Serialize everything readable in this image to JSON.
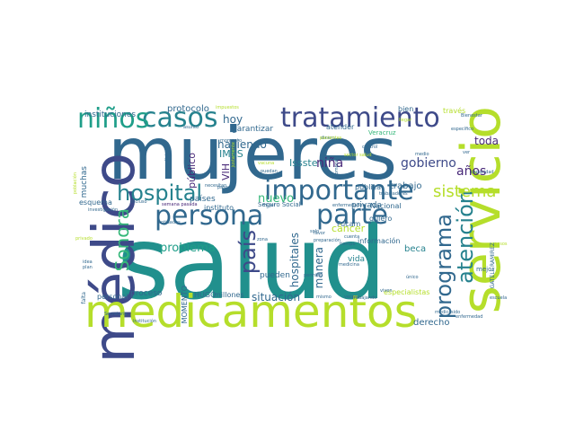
{
  "palette": {
    "dark_purple": "#440154",
    "indigo": "#3e4a89",
    "steel_blue": "#31688e",
    "blue": "#26828e",
    "teal": "#1f9e89",
    "green": "#35b779",
    "lime": "#6ece58",
    "yellow_green": "#b5de2b",
    "yellow": "#fde725"
  },
  "words": [
    {
      "text": "salud",
      "color": "#21908d"
    },
    {
      "text": "mujeres",
      "color": "#31688e"
    },
    {
      "text": "médico",
      "color": "#3e4a89"
    },
    {
      "text": "medicamentos",
      "color": "#b5de2b"
    },
    {
      "text": "servicio",
      "color": "#b5de2b"
    },
    {
      "text": "tratamiento",
      "color": "#3e4a89"
    },
    {
      "text": "importante",
      "color": "#31688e"
    },
    {
      "text": "persona",
      "color": "#31688e"
    },
    {
      "text": "parte",
      "color": "#31688e"
    },
    {
      "text": "casos",
      "color": "#26828e"
    },
    {
      "text": "niños",
      "color": "#1f9e89"
    },
    {
      "text": "hospital",
      "color": "#26828e"
    },
    {
      "text": "Sonora",
      "color": "#35b779"
    },
    {
      "text": "programa",
      "color": "#31688e"
    },
    {
      "text": "atención",
      "color": "#26828e"
    },
    {
      "text": "país",
      "color": "#3e4a89"
    },
    {
      "text": "sistema",
      "color": "#b5de2b"
    },
    {
      "text": "años",
      "color": "#482878"
    },
    {
      "text": "gobierno",
      "color": "#3e4a89"
    },
    {
      "text": "niña",
      "color": "#482878"
    },
    {
      "text": "toda",
      "color": "#482878"
    },
    {
      "text": "problema",
      "color": "#1f9e89"
    },
    {
      "text": "nuevo",
      "color": "#35b779"
    },
    {
      "text": "hoy",
      "color": "#31688e"
    },
    {
      "text": "haciendo",
      "color": "#31688e"
    },
    {
      "text": "manera",
      "color": "#31688e"
    },
    {
      "text": "hospitales",
      "color": "#31688e"
    },
    {
      "text": "situación",
      "color": "#31688e"
    },
    {
      "text": "IMSS",
      "color": "#26828e"
    },
    {
      "text": "Issste",
      "color": "#26828e"
    },
    {
      "text": "VIH",
      "color": "#482878"
    },
    {
      "text": "público",
      "color": "#482878"
    },
    {
      "text": "trabajo",
      "color": "#31688e"
    },
    {
      "text": "derecho",
      "color": "#31688e"
    },
    {
      "text": "beca",
      "color": "#26828e"
    },
    {
      "text": "cáncer",
      "color": "#b5de2b"
    },
    {
      "text": "vida",
      "color": "#26828e"
    },
    {
      "text": "privada",
      "color": "#31688e"
    },
    {
      "text": "pública",
      "color": "#31688e"
    },
    {
      "text": "protocolo",
      "color": "#31688e"
    },
    {
      "text": "instituciones",
      "color": "#31688e"
    },
    {
      "text": "muchas",
      "color": "#31688e"
    },
    {
      "text": "esquema",
      "color": "#31688e"
    },
    {
      "text": "garantizar",
      "color": "#31688e"
    },
    {
      "text": "pueden",
      "color": "#31688e"
    },
    {
      "text": "países",
      "color": "#31688e"
    },
    {
      "text": "instituto",
      "color": "#31688e"
    },
    {
      "text": "proceso",
      "color": "#31688e"
    },
    {
      "text": "personal",
      "color": "#31688e"
    },
    {
      "text": "millones",
      "color": "#31688e"
    },
    {
      "text": "HUGO",
      "color": "#31688e"
    },
    {
      "text": "MOMENTO",
      "color": "#31688e"
    },
    {
      "text": "especialistas",
      "color": "#b5de2b"
    },
    {
      "text": "información",
      "color": "#31688e"
    },
    {
      "text": "Nacional",
      "color": "#31688e"
    },
    {
      "text": "quiero",
      "color": "#31688e"
    },
    {
      "text": "Fucam",
      "color": "#31688e"
    },
    {
      "text": "atender",
      "color": "#31688e"
    },
    {
      "text": "bien",
      "color": "#31688e"
    },
    {
      "text": "través",
      "color": "#b5de2b"
    },
    {
      "text": "Veracruz",
      "color": "#35b779"
    },
    {
      "text": "Seguro Social",
      "color": "#31688e"
    },
    {
      "text": "GATELL RAMÍREZ",
      "color": "#31688e"
    },
    {
      "text": "mejor",
      "color": "#31688e"
    },
    {
      "text": "mujer",
      "color": "#31688e"
    },
    {
      "text": "falta",
      "color": "#31688e"
    },
    {
      "text": "idea",
      "color": "#31688e"
    },
    {
      "text": "plan",
      "color": "#31688e"
    },
    {
      "text": "investigación",
      "color": "#31688e"
    },
    {
      "text": "incluso",
      "color": "#31688e"
    },
    {
      "text": "semana pasada",
      "color": "#482878"
    },
    {
      "text": "pasado",
      "color": "#31688e"
    },
    {
      "text": "condiciones",
      "color": "#31688e"
    },
    {
      "text": "asunto",
      "color": "#31688e"
    },
    {
      "text": "impuestos",
      "color": "#b5de2b"
    },
    {
      "text": "Bienestar",
      "color": "#31688e"
    },
    {
      "text": "específico",
      "color": "#31688e"
    },
    {
      "text": "capacidad",
      "color": "#31688e"
    },
    {
      "text": "Secretaría",
      "color": "#31688e"
    },
    {
      "text": "institución",
      "color": "#31688e"
    },
    {
      "text": "entidades",
      "color": "#31688e"
    },
    {
      "text": "médica",
      "color": "#31688e"
    },
    {
      "text": "enfermedades",
      "color": "#31688e"
    },
    {
      "text": "trabajando",
      "color": "#31688e"
    },
    {
      "text": "viven",
      "color": "#31688e"
    },
    {
      "text": "único",
      "color": "#31688e"
    },
    {
      "text": "veces",
      "color": "#31688e"
    },
    {
      "text": "sido",
      "color": "#31688e"
    },
    {
      "text": "pesos",
      "color": "#b5de2b"
    },
    {
      "text": "sector salud",
      "color": "#b5de2b"
    },
    {
      "text": "control",
      "color": "#31688e"
    },
    {
      "text": "trabajadores",
      "color": "#31688e"
    },
    {
      "text": "tiempo",
      "color": "#31688e"
    },
    {
      "text": "cuenta",
      "color": "#31688e"
    },
    {
      "text": "comprar",
      "color": "#31688e"
    },
    {
      "text": "dinero",
      "color": "#31688e"
    },
    {
      "text": "favor",
      "color": "#31688e"
    },
    {
      "text": "solo",
      "color": "#31688e"
    },
    {
      "text": "medicina",
      "color": "#31688e"
    },
    {
      "text": "mismo",
      "color": "#31688e"
    },
    {
      "text": "permite",
      "color": "#31688e"
    },
    {
      "text": "población",
      "color": "#b5de2b"
    },
    {
      "text": "puedan",
      "color": "#31688e"
    },
    {
      "text": "justamente",
      "color": "#b5de2b"
    },
    {
      "text": "preparación",
      "color": "#31688e"
    },
    {
      "text": "escuela",
      "color": "#31688e"
    },
    {
      "text": "enfermedad",
      "color": "#31688e"
    },
    {
      "text": "momento",
      "color": "#31688e"
    },
    {
      "text": "privado",
      "color": "#b5de2b"
    },
    {
      "text": "necesitan",
      "color": "#31688e"
    },
    {
      "text": "medio",
      "color": "#31688e"
    },
    {
      "text": "zona",
      "color": "#31688e"
    },
    {
      "text": "vacuna",
      "color": "#b5de2b"
    },
    {
      "text": "llegar",
      "color": "#b5de2b"
    },
    {
      "text": "ver",
      "color": "#31688e"
    },
    {
      "text": "pacientes",
      "color": "#b5de2b"
    }
  ]
}
